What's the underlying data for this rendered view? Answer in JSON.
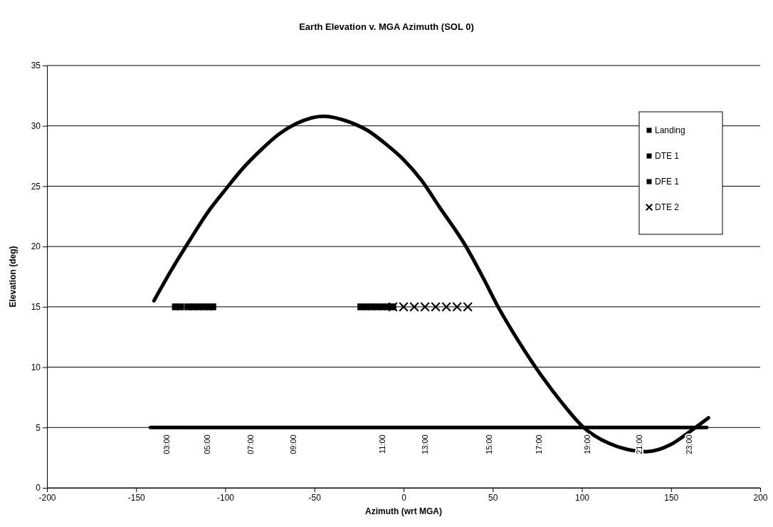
{
  "chart_data": {
    "type": "scatter",
    "title": "Earth Elevation v. MGA Azimuth (SOL 0)",
    "xlabel": "Azimuth (wrt MGA)",
    "ylabel": "Elevation (deg)",
    "xlim": [
      -200,
      200
    ],
    "xticks": [
      -200,
      -150,
      -100,
      -50,
      0,
      50,
      100,
      150,
      200
    ],
    "ylim": [
      0,
      35
    ],
    "yticks": [
      0,
      5,
      10,
      15,
      20,
      25,
      30,
      35
    ],
    "grid": "y",
    "legend": "top right",
    "series": [
      {
        "type": "line",
        "color": "#000000",
        "x": [
          -140,
          -130,
          -120,
          -110,
          -100,
          -90,
          -80,
          -70,
          -60,
          -45,
          -30,
          -20,
          -10,
          0,
          10,
          20,
          35,
          45,
          53,
          63,
          74,
          88,
          101,
          115,
          125,
          136,
          150,
          160,
          171
        ],
        "values": [
          15.5,
          18.1,
          20.5,
          22.8,
          24.7,
          26.5,
          28,
          29.3,
          30.2,
          30.8,
          30.3,
          29.6,
          28.5,
          27.2,
          25.5,
          23.3,
          20,
          17.3,
          15,
          12.5,
          10,
          7.2,
          5,
          3.7,
          3.2,
          3,
          3.6,
          4.6,
          5.8
        ]
      },
      {
        "type": "line",
        "color": "#000000",
        "x": [
          -142,
          170
        ],
        "values": [
          5,
          5
        ]
      },
      {
        "name": "Landing",
        "color": "#000000",
        "marker": "square",
        "x": [
          -128,
          -125
        ],
        "values": [
          15,
          15
        ]
      },
      {
        "name": "DTE 1",
        "color": "#000000",
        "marker": "square",
        "x": [
          -121,
          -118,
          -115,
          -112,
          -109,
          -107
        ],
        "values": [
          15,
          15,
          15,
          15,
          15,
          15
        ]
      },
      {
        "name": "DFE 1",
        "color": "#000000",
        "marker": "square",
        "x": [
          -24,
          -21,
          -18,
          -15,
          -12,
          -9,
          -6
        ],
        "values": [
          15,
          15,
          15,
          15,
          15,
          15,
          15
        ]
      },
      {
        "name": "DTE 2",
        "color": "#000000",
        "marker": "cross",
        "x": [
          -6,
          0,
          6,
          12,
          18,
          24,
          30,
          36
        ],
        "values": [
          15,
          15,
          15,
          15,
          15,
          15,
          15,
          15
        ]
      }
    ],
    "annotations": [
      {
        "text": "03:00",
        "x": -133,
        "y": 5
      },
      {
        "text": "05:00",
        "x": -110,
        "y": 5
      },
      {
        "text": "07:00",
        "x": -86,
        "y": 5
      },
      {
        "text": "09:00",
        "x": -62,
        "y": 5
      },
      {
        "text": "11:00",
        "x": -12,
        "y": 5
      },
      {
        "text": "13:00",
        "x": 12,
        "y": 5
      },
      {
        "text": "15:00",
        "x": 48,
        "y": 5
      },
      {
        "text": "17:00",
        "x": 76,
        "y": 5
      },
      {
        "text": "19:00",
        "x": 103,
        "y": 5
      },
      {
        "text": "21:00",
        "x": 132,
        "y": 5
      },
      {
        "text": "23:00",
        "x": 160,
        "y": 5
      }
    ]
  }
}
